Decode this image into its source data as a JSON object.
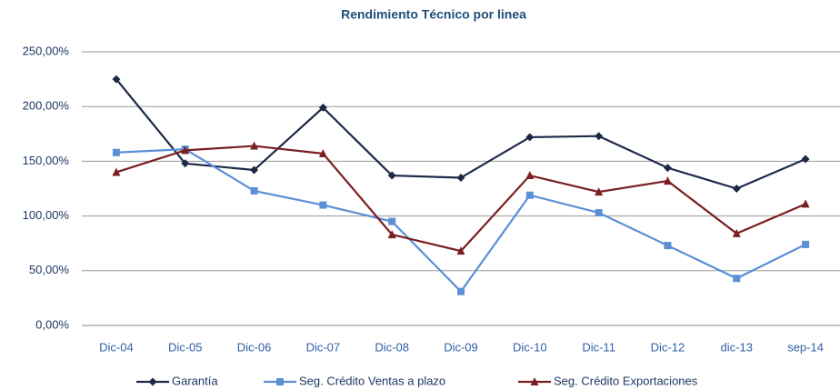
{
  "chart_data": {
    "type": "line",
    "title": "Rendimiento Técnico por linea",
    "categories": [
      "Dic-04",
      "Dic-05",
      "Dic-06",
      "Dic-07",
      "Dic-08",
      "Dic-09",
      "Dic-10",
      "Dic-11",
      "Dic-12",
      "dic-13",
      "sep-14"
    ],
    "series": [
      {
        "name": "Garantía",
        "color": "#1c2a48",
        "marker": "diamond",
        "values": [
          225,
          148,
          142,
          199,
          137,
          135,
          172,
          173,
          144,
          125,
          152
        ]
      },
      {
        "name": "Seg. Crédito Ventas a plazo",
        "color": "#5b8fd6",
        "marker": "square",
        "values": [
          158,
          161,
          123,
          110,
          95,
          31,
          119,
          103,
          73,
          43,
          74
        ]
      },
      {
        "name": "Seg. Crédito Exportaciones",
        "color": "#7a1f22",
        "marker": "triangle",
        "values": [
          140,
          160,
          164,
          157,
          83,
          68,
          137,
          122,
          132,
          84,
          111
        ]
      }
    ],
    "ylim": [
      0,
      250
    ],
    "yticks": [
      {
        "value": 0,
        "label": "0,00%"
      },
      {
        "value": 50,
        "label": "50,00%"
      },
      {
        "value": 100,
        "label": "100,00%"
      },
      {
        "value": 150,
        "label": "150,00%"
      },
      {
        "value": 200,
        "label": "200,00%"
      },
      {
        "value": 250,
        "label": "250,00%"
      }
    ],
    "grid": true,
    "legend": "bottom"
  }
}
